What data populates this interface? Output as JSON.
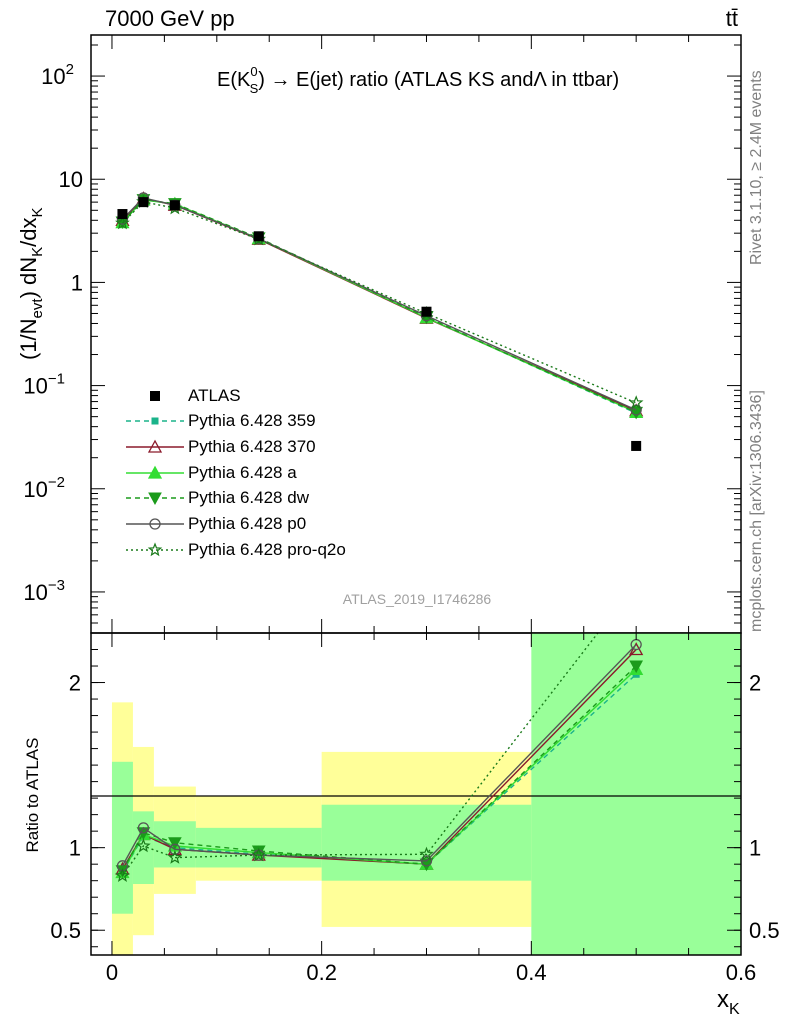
{
  "header": {
    "energy_label": "7000 GeV pp",
    "process_label": "tt̄"
  },
  "side_labels": {
    "rivet": "Rivet 3.1.10, ≥ 2.4M events",
    "mcplots": "mcplots.cern.ch [arXiv:1306.3436]"
  },
  "chart_data": [
    {
      "type": "line",
      "title_parts": {
        "pre": "E(K",
        "sup": "0",
        "sub": "S",
        "post": ") → E(jet) ratio (ATLAS KS andΛ in ttbar)"
      },
      "ylabel": "(1/N_evt) dN_K/dx_K",
      "yscale": "log",
      "ylim": [
        0.0004,
        250
      ],
      "xlim": [
        -0.02,
        0.6
      ],
      "yticks": [
        {
          "v": 0.001,
          "mant": "10",
          "exp": "−3"
        },
        {
          "v": 0.01,
          "mant": "10",
          "exp": "−2"
        },
        {
          "v": 0.1,
          "mant": "10",
          "exp": "−1"
        },
        {
          "v": 1,
          "mant": "1",
          "exp": ""
        },
        {
          "v": 10,
          "mant": "10",
          "exp": ""
        },
        {
          "v": 100,
          "mant": "10",
          "exp": "2"
        }
      ],
      "watermark": "ATLAS_2019_I1746286",
      "data": {
        "name": "ATLAS",
        "color": "#000000",
        "x": [
          0.01,
          0.03,
          0.06,
          0.14,
          0.3,
          0.5
        ],
        "y": [
          4.6,
          6.0,
          5.6,
          2.8,
          0.52,
          0.026
        ]
      },
      "series": [
        {
          "name": "Pythia 6.428 359",
          "color": "#1ab38a",
          "dash": "5,4",
          "marker": "square",
          "x": [
            0.01,
            0.03,
            0.06,
            0.14,
            0.3,
            0.5
          ],
          "y": [
            3.9,
            6.4,
            5.7,
            2.65,
            0.46,
            0.054
          ]
        },
        {
          "name": "Pythia 6.428 370",
          "color": "#8b1a2b",
          "dash": "",
          "marker": "triangle-open",
          "x": [
            0.01,
            0.03,
            0.06,
            0.14,
            0.3,
            0.5
          ],
          "y": [
            4.0,
            6.5,
            5.6,
            2.62,
            0.45,
            0.057
          ]
        },
        {
          "name": "Pythia 6.428 a",
          "color": "#33dd33",
          "dash": "",
          "marker": "triangle",
          "x": [
            0.01,
            0.03,
            0.06,
            0.14,
            0.3,
            0.5
          ],
          "y": [
            3.8,
            6.3,
            5.75,
            2.66,
            0.455,
            0.055
          ]
        },
        {
          "name": "Pythia 6.428 dw",
          "color": "#1b9b1b",
          "dash": "5,4",
          "marker": "triangle-down",
          "x": [
            0.01,
            0.03,
            0.06,
            0.14,
            0.3,
            0.5
          ],
          "y": [
            3.85,
            6.35,
            5.8,
            2.7,
            0.46,
            0.055
          ]
        },
        {
          "name": "Pythia 6.428 p0",
          "color": "#555555",
          "dash": "",
          "marker": "circle-open",
          "x": [
            0.01,
            0.03,
            0.06,
            0.14,
            0.3,
            0.5
          ],
          "y": [
            4.1,
            6.6,
            5.6,
            2.65,
            0.475,
            0.058
          ]
        },
        {
          "name": "Pythia 6.428 pro-q2o",
          "color": "#1a7a1a",
          "dash": "2,3",
          "marker": "star-open",
          "x": [
            0.01,
            0.03,
            0.06,
            0.14,
            0.3,
            0.5
          ],
          "y": [
            3.75,
            6.05,
            5.25,
            2.62,
            0.5,
            0.068
          ]
        }
      ]
    },
    {
      "type": "line",
      "ylabel": "Ratio to ATLAS",
      "xlabel": "x_K",
      "ylim": [
        0.35,
        2.3
      ],
      "xlim": [
        -0.02,
        0.6
      ],
      "yticks": [
        0.5,
        1,
        2
      ],
      "xticks": [
        0,
        0.2,
        0.4,
        0.6
      ],
      "uncertainty_bands": [
        {
          "x0": 0.0,
          "x1": 0.02,
          "y_lo": 0.3,
          "y_hi": 1.88,
          "color": "#ffff99"
        },
        {
          "x0": 0.02,
          "x1": 0.04,
          "y_lo": 0.47,
          "y_hi": 1.61,
          "color": "#ffff99"
        },
        {
          "x0": 0.04,
          "x1": 0.08,
          "y_lo": 0.72,
          "y_hi": 1.37,
          "color": "#ffff99"
        },
        {
          "x0": 0.08,
          "x1": 0.2,
          "y_lo": 0.8,
          "y_hi": 1.31,
          "color": "#ffff99"
        },
        {
          "x0": 0.2,
          "x1": 0.4,
          "y_lo": 0.52,
          "y_hi": 1.58,
          "color": "#ffff99"
        },
        {
          "x0": 0.0,
          "x1": 0.02,
          "y_lo": 0.6,
          "y_hi": 1.52,
          "color": "#99ff99"
        },
        {
          "x0": 0.02,
          "x1": 0.04,
          "y_lo": 0.78,
          "y_hi": 1.22,
          "color": "#99ff99"
        },
        {
          "x0": 0.04,
          "x1": 0.08,
          "y_lo": 0.88,
          "y_hi": 1.16,
          "color": "#99ff99"
        },
        {
          "x0": 0.08,
          "x1": 0.2,
          "y_lo": 0.88,
          "y_hi": 1.12,
          "color": "#99ff99"
        },
        {
          "x0": 0.2,
          "x1": 0.4,
          "y_lo": 0.8,
          "y_hi": 1.26,
          "color": "#99ff99"
        },
        {
          "x0": 0.4,
          "x1": 0.6,
          "y_lo": 0.3,
          "y_hi": 2.4,
          "color": "#99ff99"
        }
      ],
      "series": [
        {
          "name": "Pythia 6.428 359",
          "color": "#1ab38a",
          "dash": "5,4",
          "marker": "square",
          "x": [
            0.01,
            0.03,
            0.06,
            0.14,
            0.3,
            0.5
          ],
          "y": [
            0.85,
            1.07,
            1.0,
            0.96,
            0.9,
            2.05
          ]
        },
        {
          "name": "Pythia 6.428 370",
          "color": "#8b1a2b",
          "dash": "",
          "marker": "triangle-open",
          "x": [
            0.01,
            0.03,
            0.06,
            0.14,
            0.3,
            0.5
          ],
          "y": [
            0.87,
            1.08,
            0.99,
            0.955,
            0.9,
            2.2
          ]
        },
        {
          "name": "Pythia 6.428 a",
          "color": "#33dd33",
          "dash": "",
          "marker": "triangle",
          "x": [
            0.01,
            0.03,
            0.06,
            0.14,
            0.3,
            0.5
          ],
          "y": [
            0.85,
            1.08,
            1.01,
            0.97,
            0.9,
            2.08
          ]
        },
        {
          "name": "Pythia 6.428 dw",
          "color": "#1b9b1b",
          "dash": "5,4",
          "marker": "triangle-down",
          "x": [
            0.01,
            0.03,
            0.06,
            0.14,
            0.3,
            0.5
          ],
          "y": [
            0.86,
            1.09,
            1.03,
            0.98,
            0.9,
            2.1
          ]
        },
        {
          "name": "Pythia 6.428 p0",
          "color": "#555555",
          "dash": "",
          "marker": "circle-open",
          "x": [
            0.01,
            0.03,
            0.06,
            0.14,
            0.3,
            0.5
          ],
          "y": [
            0.89,
            1.12,
            0.99,
            0.955,
            0.92,
            2.23
          ]
        },
        {
          "name": "Pythia 6.428 pro-q2o",
          "color": "#1a7a1a",
          "dash": "2,3",
          "marker": "star-open",
          "x": [
            0.01,
            0.03,
            0.06,
            0.14,
            0.3,
            0.5
          ],
          "y": [
            0.83,
            1.01,
            0.94,
            0.955,
            0.96,
            2.6
          ]
        }
      ]
    }
  ]
}
